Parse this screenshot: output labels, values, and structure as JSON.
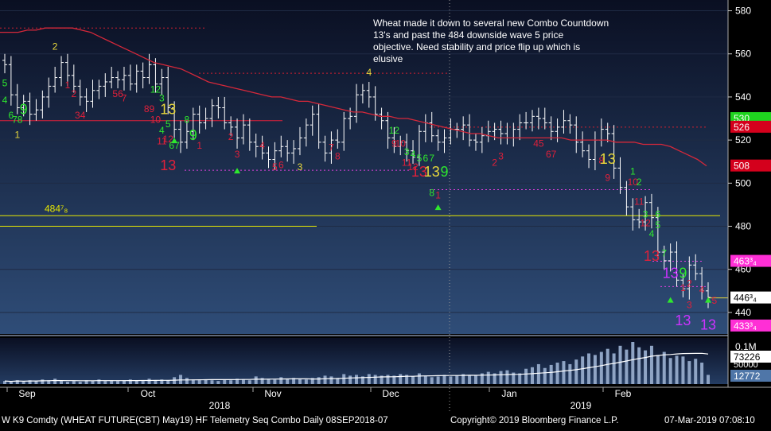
{
  "chart_data": {
    "type": "line",
    "instrument": "W K9 Comdty",
    "footer_left": "W K9 Comdty (WHEAT FUTURE(CBT) May19) HF Telemetry Seq Combo  Daily 08SEP2018-07",
    "footer_mid": "Copyright© 2019 Bloomberg Finance L.P.",
    "footer_right": "07-Mar-2019 07:08:10",
    "annotation": [
      "Wheat made it down to several new Combo Countdown",
      "13's and past the 484 downside wave 5 price",
      "objective.  Need stability and price flip up which is",
      "elusive"
    ],
    "price_axis": {
      "min": 430,
      "max": 585,
      "ticks": [
        440,
        460,
        480,
        500,
        520,
        540,
        560,
        580
      ]
    },
    "volume_axis": {
      "tick_label": "0.1M",
      "mid_label": "50000"
    },
    "months": [
      "Sep",
      "Oct",
      "Nov",
      "Dec",
      "Jan",
      "Feb"
    ],
    "years": [
      "2018",
      "2019"
    ],
    "value_tags": [
      {
        "text": "530",
        "value": 530,
        "color": "#1fd31f"
      },
      {
        "text": "526",
        "value": 526,
        "color": "#d4001c"
      },
      {
        "text": "508",
        "value": 508,
        "color": "#d4001c"
      },
      {
        "text": "463³₄",
        "value": 463.75,
        "color": "#ff2fd6"
      },
      {
        "text": "446³₄",
        "value": 446.75,
        "color": "#ffffff"
      },
      {
        "text": "433³₄",
        "value": 433.75,
        "color": "#ff2fd6"
      }
    ],
    "volume_tags": [
      {
        "text": "73226",
        "color": "#ffffff"
      },
      {
        "text": "12772",
        "color": "#4f76a8"
      }
    ],
    "level_484_label": "484⁷₈",
    "levels": [
      {
        "name": "484",
        "value": 484.875,
        "color": "#e8e800",
        "style": "solid"
      },
      {
        "name": "480",
        "value": 480,
        "color": "#e8e800",
        "style": "solid",
        "short": true
      },
      {
        "name": "529 red",
        "value": 529,
        "color": "#e0203a",
        "style": "solid",
        "short": true
      },
      {
        "name": "572 red",
        "value": 572,
        "color": "#d02030",
        "style": "dotted"
      },
      {
        "name": "551 red",
        "value": 551,
        "color": "#d02030",
        "style": "dotted"
      },
      {
        "name": "526 red",
        "value": 526,
        "color": "#d02030",
        "style": "dotted"
      },
      {
        "name": "506 magenta",
        "value": 506,
        "color": "#e040e0",
        "style": "dotted"
      },
      {
        "name": "497 magenta",
        "value": 497,
        "color": "#e040e0",
        "style": "dotted"
      },
      {
        "name": "463 magenta",
        "value": 463.75,
        "color": "#e040e0",
        "style": "dotted"
      },
      {
        "name": "452 magenta",
        "value": 452,
        "color": "#e040e0",
        "style": "dotted"
      }
    ],
    "ma_values": [
      570,
      570,
      570,
      571,
      571,
      572,
      572,
      572,
      572,
      571,
      570,
      568,
      566,
      564,
      562,
      560,
      558,
      556,
      555,
      554,
      553,
      551,
      549,
      547,
      546,
      545,
      544,
      543,
      542,
      541,
      540,
      540,
      539,
      538,
      538,
      537,
      536,
      535,
      534,
      533,
      533,
      532,
      531,
      531,
      530,
      530,
      529,
      528,
      527,
      526,
      525,
      524,
      523,
      523,
      522,
      521,
      521,
      521,
      521,
      521,
      521,
      521,
      521,
      520,
      520,
      520,
      520,
      520,
      519,
      519,
      519,
      518,
      518,
      518,
      517,
      515,
      513,
      511,
      508
    ],
    "closes": [
      555,
      541,
      535,
      538,
      532,
      534,
      540,
      545,
      549,
      556,
      550,
      545,
      540,
      538,
      543,
      545,
      547,
      549,
      548,
      550,
      546,
      552,
      549,
      555,
      546,
      549,
      535,
      525,
      519,
      524,
      532,
      528,
      530,
      536,
      535,
      528,
      526,
      521,
      527,
      519,
      517,
      514,
      511,
      515,
      517,
      514,
      516,
      521,
      527,
      532,
      519,
      514,
      520,
      519,
      530,
      531,
      541,
      543,
      540,
      532,
      529,
      521,
      517,
      519,
      515,
      512,
      524,
      528,
      522,
      519,
      521,
      525,
      525,
      527,
      520,
      519,
      522,
      524,
      525,
      523,
      521,
      525,
      528,
      528,
      531,
      530,
      528,
      524,
      526,
      529,
      527,
      519,
      515,
      511,
      520,
      525,
      523,
      507,
      498,
      489,
      483,
      482,
      491,
      484,
      468,
      464,
      468,
      455,
      451,
      462,
      458,
      450,
      447
    ],
    "volume": [
      0.04,
      0.03,
      0.05,
      0.03,
      0.05,
      0.04,
      0.06,
      0.05,
      0.07,
      0.04,
      0.03,
      0.04,
      0.03,
      0.05,
      0.04,
      0.06,
      0.04,
      0.05,
      0.04,
      0.05,
      0.06,
      0.05,
      0.04,
      0.07,
      0.05,
      0.06,
      0.05,
      0.09,
      0.12,
      0.08,
      0.06,
      0.05,
      0.06,
      0.05,
      0.04,
      0.06,
      0.05,
      0.07,
      0.06,
      0.05,
      0.1,
      0.08,
      0.07,
      0.06,
      0.09,
      0.07,
      0.08,
      0.07,
      0.06,
      0.08,
      0.09,
      0.11,
      0.1,
      0.08,
      0.13,
      0.11,
      0.12,
      0.1,
      0.13,
      0.12,
      0.11,
      0.12,
      0.11,
      0.13,
      0.12,
      0.1,
      0.14,
      0.11,
      0.09,
      0.1,
      0.12,
      0.1,
      0.11,
      0.13,
      0.11,
      0.12,
      0.14,
      0.16,
      0.14,
      0.17,
      0.18,
      0.15,
      0.14,
      0.2,
      0.22,
      0.26,
      0.21,
      0.25,
      0.28,
      0.3,
      0.26,
      0.32,
      0.36,
      0.4,
      0.38,
      0.42,
      0.46,
      0.4,
      0.5,
      0.45,
      0.55,
      0.48,
      0.44,
      0.5,
      0.38,
      0.42,
      0.34,
      0.37,
      0.36,
      0.3,
      0.33,
      0.28,
      0.12
    ],
    "volume_max": 0.55,
    "counts": [
      {
        "text": "5",
        "i": 0,
        "v": 545,
        "c": "#2ee82e",
        "s": 12
      },
      {
        "text": "4",
        "i": 0,
        "v": 537,
        "c": "#2ee82e",
        "s": 12
      },
      {
        "text": "6",
        "i": 1,
        "v": 530,
        "c": "#2ee82e",
        "s": 12
      },
      {
        "text": "78",
        "i": 2,
        "v": 528,
        "c": "#2ee82e",
        "s": 12
      },
      {
        "text": "9",
        "i": 3,
        "v": 532,
        "c": "#2ee82e",
        "s": 18
      },
      {
        "text": "1",
        "i": 2,
        "v": 521,
        "c": "#e8d83c",
        "s": 12
      },
      {
        "text": "2",
        "i": 8,
        "v": 562,
        "c": "#e8d83c",
        "s": 12
      },
      {
        "text": "1",
        "i": 10,
        "v": 544,
        "c": "#e0203a",
        "s": 12
      },
      {
        "text": "2",
        "i": 11,
        "v": 540,
        "c": "#e0203a",
        "s": 12
      },
      {
        "text": "34",
        "i": 12,
        "v": 530,
        "c": "#e0203a",
        "s": 12
      },
      {
        "text": "56",
        "i": 18,
        "v": 540,
        "c": "#e0203a",
        "s": 12
      },
      {
        "text": "7",
        "i": 19,
        "v": 538,
        "c": "#e0203a",
        "s": 12
      },
      {
        "text": "12",
        "i": 24,
        "v": 542,
        "c": "#2ee82e",
        "s": 12
      },
      {
        "text": "3",
        "i": 25,
        "v": 538,
        "c": "#2ee82e",
        "s": 12
      },
      {
        "text": "89",
        "i": 23,
        "v": 533,
        "c": "#e0203a",
        "s": 12
      },
      {
        "text": "13",
        "i": 26,
        "v": 532,
        "c": "#e8d83c",
        "s": 18
      },
      {
        "text": "10",
        "i": 24,
        "v": 528,
        "c": "#e0203a",
        "s": 12
      },
      {
        "text": "5",
        "i": 26,
        "v": 526,
        "c": "#2ee82e",
        "s": 12
      },
      {
        "text": "8",
        "i": 29,
        "v": 528,
        "c": "#2ee82e",
        "s": 12
      },
      {
        "text": "4",
        "i": 25,
        "v": 523,
        "c": "#2ee82e",
        "s": 12
      },
      {
        "text": "9",
        "i": 30,
        "v": 520,
        "c": "#2ee82e",
        "s": 18
      },
      {
        "text": "11",
        "i": 25,
        "v": 518,
        "c": "#e0203a",
        "s": 12
      },
      {
        "text": "12",
        "i": 26,
        "v": 519,
        "c": "#e0203a",
        "s": 12
      },
      {
        "text": "67",
        "i": 27,
        "v": 516,
        "c": "#2ee82e",
        "s": 12
      },
      {
        "text": "1",
        "i": 31,
        "v": 516,
        "c": "#e0203a",
        "s": 12
      },
      {
        "text": "13",
        "i": 26,
        "v": 506,
        "c": "#e0203a",
        "s": 18
      },
      {
        "text": "2",
        "i": 36,
        "v": 520,
        "c": "#e0203a",
        "s": 12
      },
      {
        "text": "3",
        "i": 37,
        "v": 512,
        "c": "#e0203a",
        "s": 12
      },
      {
        "text": "4",
        "i": 41,
        "v": 516,
        "c": "#e0203a",
        "s": 12
      },
      {
        "text": "5",
        "i": 43,
        "v": 506,
        "c": "#e0203a",
        "s": 12
      },
      {
        "text": "6",
        "i": 44,
        "v": 507,
        "c": "#e0203a",
        "s": 12
      },
      {
        "text": "3",
        "i": 47,
        "v": 506,
        "c": "#e8d83c",
        "s": 12
      },
      {
        "text": "7",
        "i": 52,
        "v": 515,
        "c": "#e0203a",
        "s": 12
      },
      {
        "text": "8",
        "i": 53,
        "v": 511,
        "c": "#e0203a",
        "s": 12
      },
      {
        "text": "4",
        "i": 58,
        "v": 550,
        "c": "#e8d83c",
        "s": 12
      },
      {
        "text": "12",
        "i": 62,
        "v": 523,
        "c": "#2ee82e",
        "s": 12
      },
      {
        "text": "9",
        "i": 62,
        "v": 517,
        "c": "#e0203a",
        "s": 12
      },
      {
        "text": "10",
        "i": 63,
        "v": 517,
        "c": "#e0203a",
        "s": 12
      },
      {
        "text": "3",
        "i": 64,
        "v": 513,
        "c": "#2ee82e",
        "s": 12
      },
      {
        "text": "4",
        "i": 65,
        "v": 512,
        "c": "#2ee82e",
        "s": 12
      },
      {
        "text": "5",
        "i": 66,
        "v": 510,
        "c": "#2ee82e",
        "s": 12
      },
      {
        "text": "6",
        "i": 67,
        "v": 510,
        "c": "#2ee82e",
        "s": 12
      },
      {
        "text": "7",
        "i": 68,
        "v": 510,
        "c": "#2ee82e",
        "s": 12
      },
      {
        "text": "11",
        "i": 64,
        "v": 508,
        "c": "#e0203a",
        "s": 12
      },
      {
        "text": "12",
        "i": 65,
        "v": 506,
        "c": "#e0203a",
        "s": 12
      },
      {
        "text": "13",
        "i": 66,
        "v": 503,
        "c": "#e0203a",
        "s": 18
      },
      {
        "text": "13",
        "i": 68,
        "v": 503,
        "c": "#e8d83c",
        "s": 18
      },
      {
        "text": "9",
        "i": 70,
        "v": 503,
        "c": "#2ee82e",
        "s": 18
      },
      {
        "text": "8",
        "i": 68,
        "v": 494,
        "c": "#2ee82e",
        "s": 12
      },
      {
        "text": "1",
        "i": 69,
        "v": 493,
        "c": "#e0203a",
        "s": 12
      },
      {
        "text": "2",
        "i": 78,
        "v": 508,
        "c": "#e0203a",
        "s": 12
      },
      {
        "text": "3",
        "i": 79,
        "v": 511,
        "c": "#e0203a",
        "s": 12
      },
      {
        "text": "45",
        "i": 85,
        "v": 517,
        "c": "#e0203a",
        "s": 12
      },
      {
        "text": "67",
        "i": 87,
        "v": 512,
        "c": "#e0203a",
        "s": 12
      },
      {
        "text": "8",
        "i": 95,
        "v": 509,
        "c": "#e0203a",
        "s": 12
      },
      {
        "text": "13",
        "i": 96,
        "v": 509,
        "c": "#e8d83c",
        "s": 18
      },
      {
        "text": "9",
        "i": 96,
        "v": 501,
        "c": "#e0203a",
        "s": 12
      },
      {
        "text": "1",
        "i": 100,
        "v": 504,
        "c": "#2ee82e",
        "s": 12
      },
      {
        "text": "2",
        "i": 101,
        "v": 499,
        "c": "#2ee82e",
        "s": 12
      },
      {
        "text": "10",
        "i": 100,
        "v": 499,
        "c": "#e0203a",
        "s": 12
      },
      {
        "text": "11",
        "i": 101,
        "v": 490,
        "c": "#e0203a",
        "s": 12
      },
      {
        "text": "3",
        "i": 102,
        "v": 484,
        "c": "#2ee82e",
        "s": 12
      },
      {
        "text": "6",
        "i": 104,
        "v": 484,
        "c": "#2ee82e",
        "s": 12
      },
      {
        "text": "12",
        "i": 102,
        "v": 480,
        "c": "#e0203a",
        "s": 12
      },
      {
        "text": "5",
        "i": 104,
        "v": 479,
        "c": "#2ee82e",
        "s": 12
      },
      {
        "text": "4",
        "i": 103,
        "v": 475,
        "c": "#2ee82e",
        "s": 12
      },
      {
        "text": "13",
        "i": 103,
        "v": 464,
        "c": "#e0203a",
        "s": 18
      },
      {
        "text": "7",
        "i": 105,
        "v": 466,
        "c": "#2ee82e",
        "s": 12
      },
      {
        "text": "13",
        "i": 106,
        "v": 456,
        "c": "#cc33ff",
        "s": 18
      },
      {
        "text": "9",
        "i": 108,
        "v": 456,
        "c": "#2ee82e",
        "s": 18
      },
      {
        "text": "2",
        "i": 109,
        "v": 452,
        "c": "#e0203a",
        "s": 12
      },
      {
        "text": "1",
        "i": 108,
        "v": 450,
        "c": "#e0203a",
        "s": 12
      },
      {
        "text": "4",
        "i": 111,
        "v": 449,
        "c": "#e0203a",
        "s": 12
      },
      {
        "text": "3",
        "i": 109,
        "v": 442,
        "c": "#e0203a",
        "s": 12
      },
      {
        "text": "5",
        "i": 113,
        "v": 444,
        "c": "#e0203a",
        "s": 12
      },
      {
        "text": "13",
        "i": 108,
        "v": 434,
        "c": "#cc33ff",
        "s": 18
      },
      {
        "text": "13",
        "i": 112,
        "v": 432,
        "c": "#cc33ff",
        "s": 18
      }
    ]
  }
}
